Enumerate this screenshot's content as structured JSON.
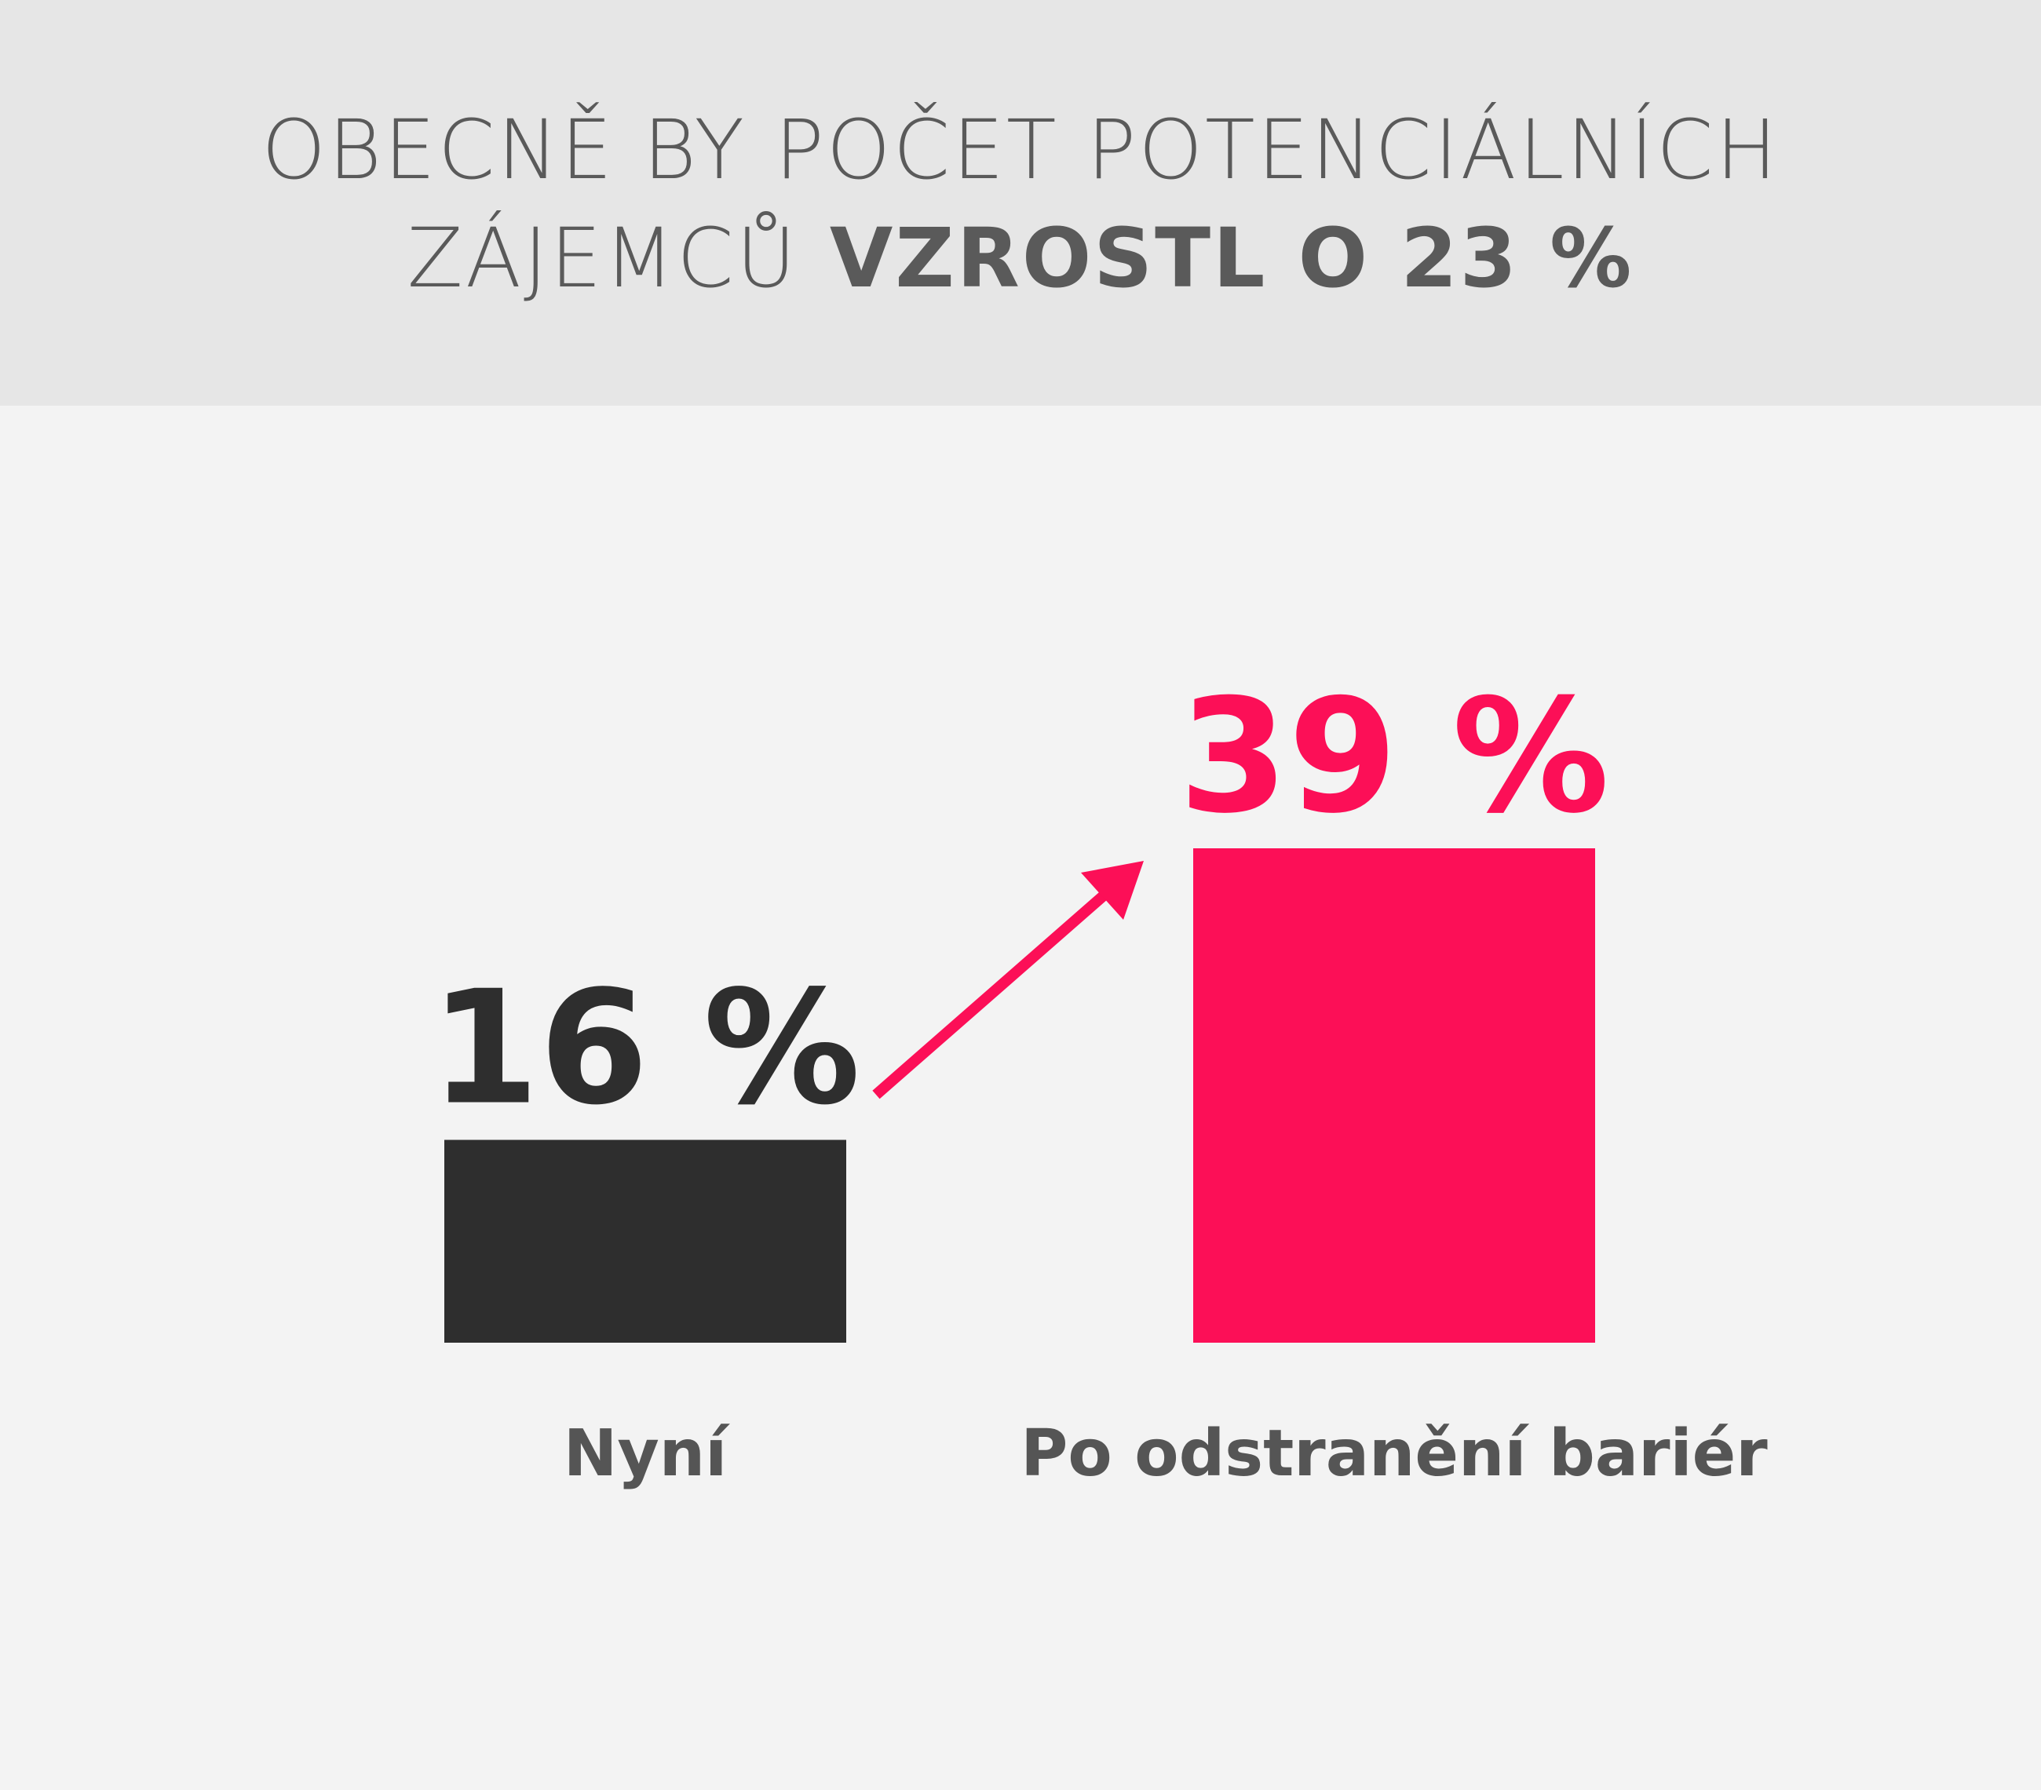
{
  "header": {
    "title_line1": "OBECNĚ BY POČET POTENCIÁLNÍCH",
    "title_line2_light": "ZÁJEMCŮ",
    "title_line2_bold": "VZROSTL O 23 %"
  },
  "colors": {
    "header_bg": "#e6e6e6",
    "page_bg": "#f3f3f3",
    "bar_now": "#2e2e2e",
    "bar_after": "#fc0f57",
    "category_text": "#555555"
  },
  "chart_data": {
    "type": "bar",
    "title": "",
    "xlabel": "",
    "ylabel": "",
    "categories": [
      "Nyní",
      "Po odstranění bariér"
    ],
    "values": [
      16,
      39
    ],
    "value_labels": [
      "16 %",
      "39 %"
    ],
    "unit": "%",
    "ylim": [
      0,
      39
    ],
    "grid": false,
    "legend": "none",
    "annotations": [
      "arrow from first bar toward second bar"
    ]
  }
}
